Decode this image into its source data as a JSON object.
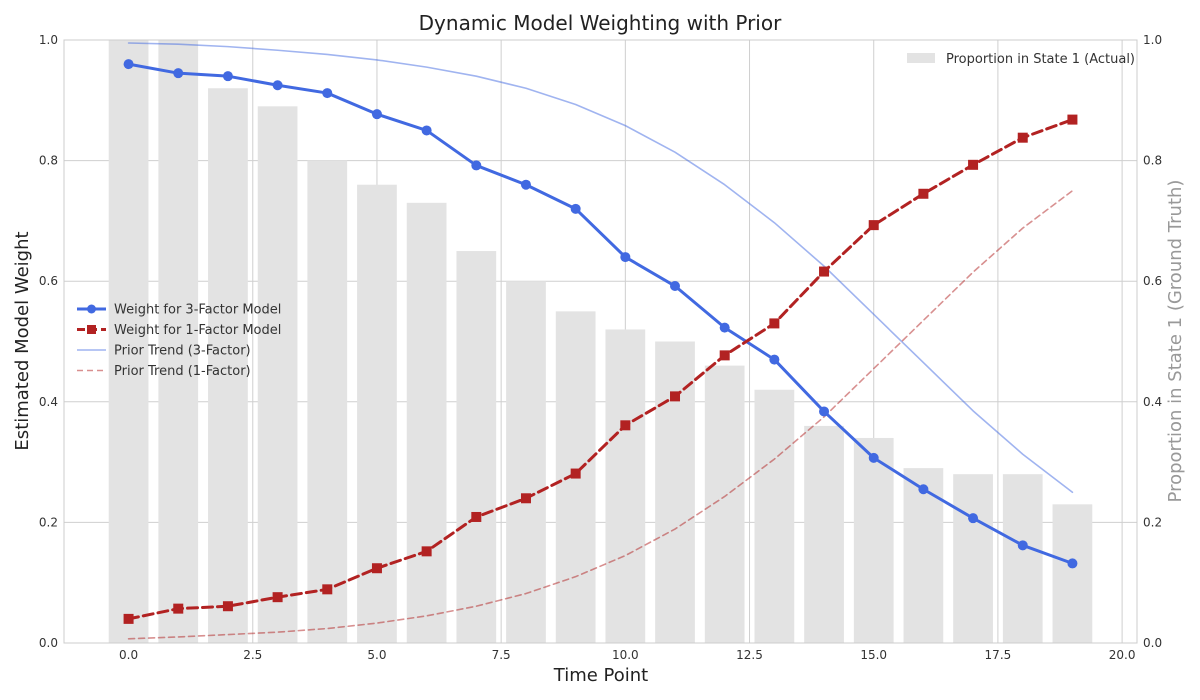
{
  "chart_data": {
    "type": "line",
    "title": "Dynamic Model Weighting with Prior",
    "xlabel": "Time Point",
    "ylabel": "Estimated Model Weight",
    "y2label": "Proportion in State 1 (Ground Truth)",
    "xlim": [
      -1.3,
      20.3
    ],
    "ylim": [
      0,
      1
    ],
    "y2lim": [
      0,
      1
    ],
    "x_ticks": [
      0.0,
      2.5,
      5.0,
      7.5,
      10.0,
      12.5,
      15.0,
      17.5,
      20.0
    ],
    "x_tick_labels": [
      "0.0",
      "2.5",
      "5.0",
      "7.5",
      "10.0",
      "12.5",
      "15.0",
      "17.5",
      "20.0"
    ],
    "y_ticks": [
      0.0,
      0.2,
      0.4,
      0.6,
      0.8,
      1.0
    ],
    "y_tick_labels": [
      "0.0",
      "0.2",
      "0.4",
      "0.6",
      "0.8",
      "1.0"
    ],
    "y2_ticks": [
      0.0,
      0.2,
      0.4,
      0.6,
      0.8,
      1.0
    ],
    "y2_tick_labels": [
      "0.0",
      "0.2",
      "0.4",
      "0.6",
      "0.8",
      "1.0"
    ],
    "grid": true,
    "x": [
      0,
      1,
      2,
      3,
      4,
      5,
      6,
      7,
      8,
      9,
      10,
      11,
      12,
      13,
      14,
      15,
      16,
      17,
      18,
      19
    ],
    "bars": {
      "name": "Proportion in State 1 (Actual)",
      "axis": "right",
      "color": "#e3e3e3",
      "values": [
        1.0,
        1.0,
        0.92,
        0.89,
        0.8,
        0.76,
        0.73,
        0.65,
        0.6,
        0.55,
        0.52,
        0.5,
        0.46,
        0.42,
        0.36,
        0.34,
        0.29,
        0.28,
        0.28,
        0.23
      ]
    },
    "series": [
      {
        "name": "Weight for 3-Factor Model",
        "color": "#4169e1",
        "style": "solid",
        "marker": "circle",
        "values": [
          0.96,
          0.945,
          0.94,
          0.925,
          0.912,
          0.877,
          0.85,
          0.792,
          0.76,
          0.72,
          0.64,
          0.592,
          0.523,
          0.47,
          0.384,
          0.307,
          0.255,
          0.207,
          0.162,
          0.132
        ]
      },
      {
        "name": "Weight for 1-Factor Model",
        "color": "#b22222",
        "style": "dashed",
        "marker": "square",
        "values": [
          0.04,
          0.057,
          0.061,
          0.076,
          0.089,
          0.124,
          0.152,
          0.209,
          0.24,
          0.281,
          0.361,
          0.409,
          0.477,
          0.53,
          0.616,
          0.693,
          0.745,
          0.793,
          0.838,
          0.868
        ]
      },
      {
        "name": "Prior Trend (3-Factor)",
        "color": "#4169e1",
        "style": "solid",
        "marker": "none",
        "opacity": 0.5,
        "values": [
          0.995,
          0.993,
          0.989,
          0.983,
          0.976,
          0.967,
          0.955,
          0.94,
          0.92,
          0.893,
          0.858,
          0.814,
          0.76,
          0.697,
          0.625,
          0.545,
          0.465,
          0.385,
          0.313,
          0.25
        ]
      },
      {
        "name": "Prior Trend (1-Factor)",
        "color": "#b22222",
        "style": "dashed",
        "marker": "none",
        "opacity": 0.5,
        "values": [
          0.007,
          0.01,
          0.014,
          0.018,
          0.024,
          0.033,
          0.045,
          0.061,
          0.082,
          0.11,
          0.145,
          0.189,
          0.243,
          0.305,
          0.375,
          0.455,
          0.535,
          0.615,
          0.688,
          0.75
        ]
      }
    ],
    "legend_left_position": "center-left",
    "legend_right_position": "top-right"
  }
}
